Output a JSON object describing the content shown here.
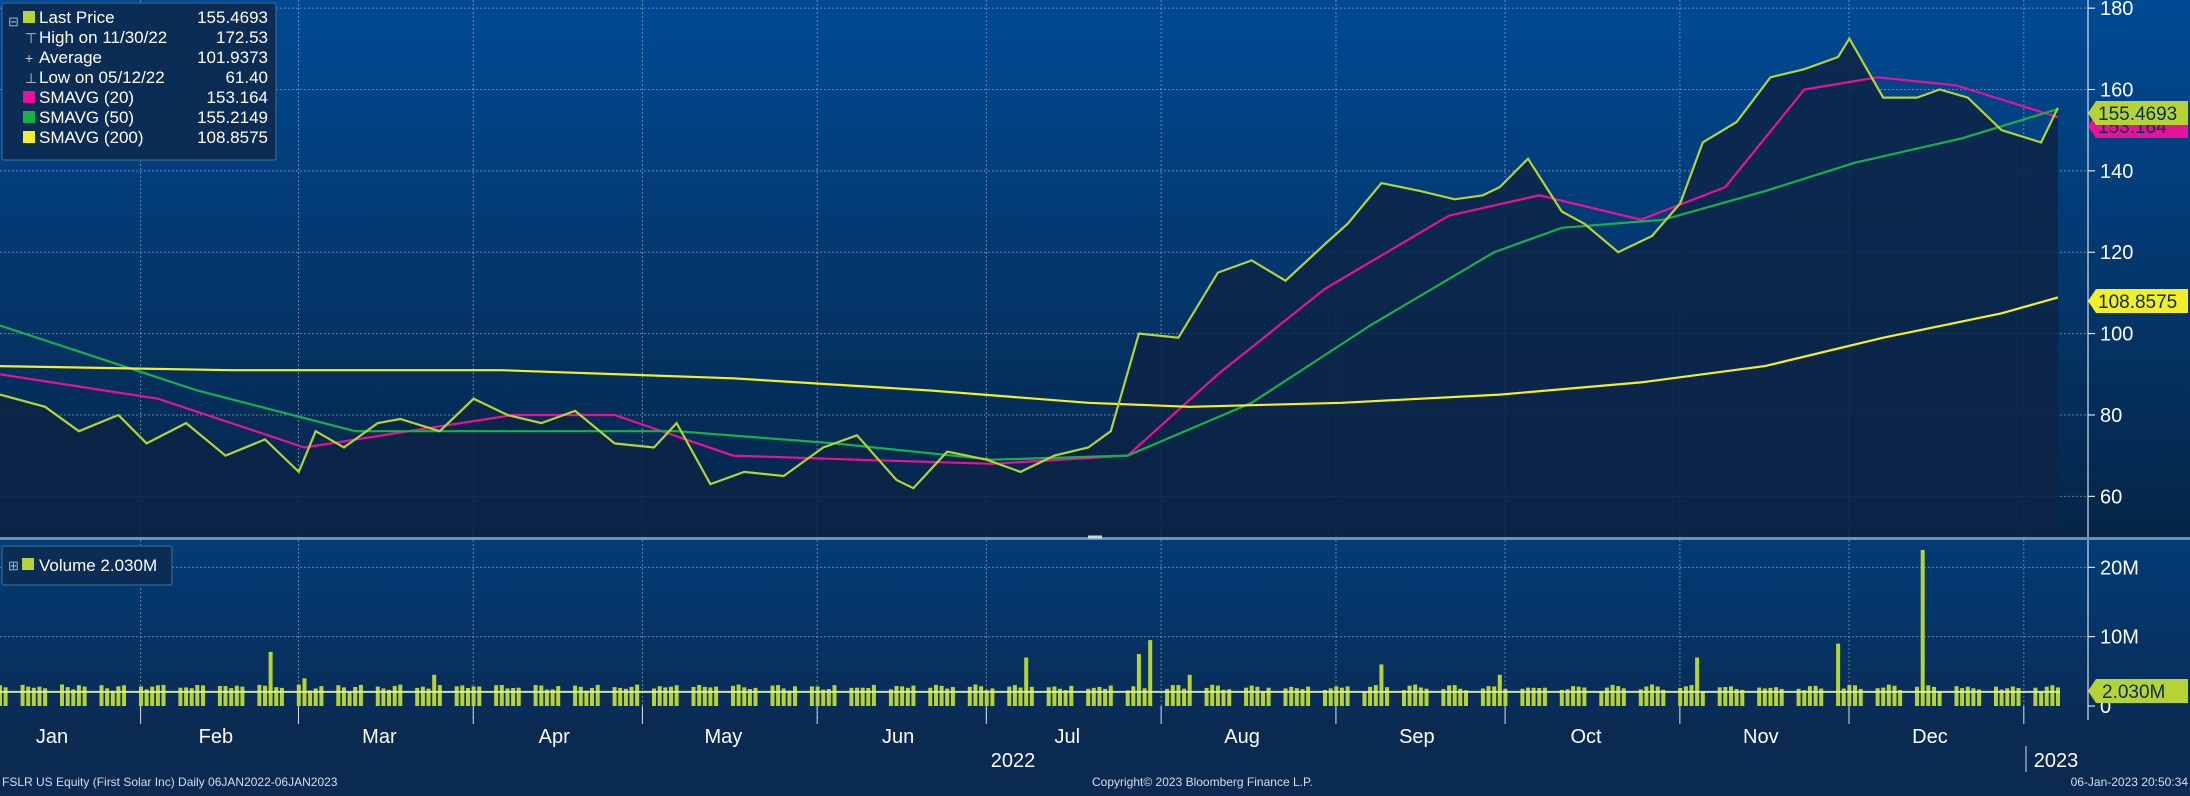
{
  "legend": [
    {
      "label": "Last Price",
      "value": "155.4693",
      "color": "#b5d334",
      "marker": "square"
    },
    {
      "label": "High on 11/30/22",
      "value": "172.53",
      "color": "#c8c8c8",
      "marker": "high-tick"
    },
    {
      "label": "Average",
      "value": "101.9373",
      "color": "#c8c8c8",
      "marker": "average-tick"
    },
    {
      "label": "Low on 05/12/22",
      "value": "61.40",
      "color": "#c8c8c8",
      "marker": "low-tick"
    },
    {
      "label": "SMAVG (20)",
      "value": "153.164",
      "color": "#e8129a",
      "marker": "square"
    },
    {
      "label": "SMAVG (50)",
      "value": "155.2149",
      "color": "#19b04a",
      "marker": "square"
    },
    {
      "label": "SMAVG (200)",
      "value": "108.8575",
      "color": "#f2ee2a",
      "marker": "square"
    }
  ],
  "volume_legend": {
    "label": "Volume 2.030M",
    "color": "#b5d334"
  },
  "price_tags": [
    {
      "value": "155.4693",
      "color": "#b5d334"
    },
    {
      "value": "153.164",
      "color": "#e8129a"
    },
    {
      "value": "108.8575",
      "color": "#f2ee2a"
    }
  ],
  "volume_tag": {
    "value": "2.030M",
    "color": "#b5d334"
  },
  "footer": {
    "left": "FSLR US Equity (First Solar Inc)  Daily 06JAN2022-06JAN2023",
    "center": "Copyright© 2023 Bloomberg Finance L.P.",
    "right": "06-Jan-2023 20:50:34"
  },
  "chart_data": {
    "type": "line",
    "title": "",
    "grid": true,
    "legend_position": "top-left",
    "x_month_labels": [
      "Jan",
      "Feb",
      "Mar",
      "Apr",
      "May",
      "Jun",
      "Jul",
      "Aug",
      "Sep",
      "Oct",
      "Nov",
      "Dec"
    ],
    "x_year_labels": [
      "2022",
      "2023"
    ],
    "price_ylim": [
      50,
      182
    ],
    "price_yticks": [
      60,
      80,
      100,
      120,
      140,
      160,
      180
    ],
    "volume_ylim": [
      0,
      25
    ],
    "volume_yticks": [
      {
        "v": 0,
        "label": "0"
      },
      {
        "v": 10,
        "label": "10M"
      },
      {
        "v": 20,
        "label": "20M"
      }
    ],
    "series": [
      {
        "name": "Last Price",
        "color": "#b5d334",
        "x": [
          "2022-01-06",
          "2022-01-14",
          "2022-01-20",
          "2022-01-27",
          "2022-02-01",
          "2022-02-08",
          "2022-02-15",
          "2022-02-22",
          "2022-02-28",
          "2022-03-03",
          "2022-03-08",
          "2022-03-14",
          "2022-03-18",
          "2022-03-25",
          "2022-03-31",
          "2022-04-06",
          "2022-04-12",
          "2022-04-18",
          "2022-04-25",
          "2022-05-02",
          "2022-05-06",
          "2022-05-12",
          "2022-05-18",
          "2022-05-25",
          "2022-06-01",
          "2022-06-07",
          "2022-06-14",
          "2022-06-17",
          "2022-06-23",
          "2022-06-30",
          "2022-07-06",
          "2022-07-12",
          "2022-07-18",
          "2022-07-22",
          "2022-07-27",
          "2022-08-03",
          "2022-08-10",
          "2022-08-16",
          "2022-08-22",
          "2022-08-29",
          "2022-09-02",
          "2022-09-08",
          "2022-09-15",
          "2022-09-21",
          "2022-09-26",
          "2022-09-29",
          "2022-10-04",
          "2022-10-10",
          "2022-10-14",
          "2022-10-20",
          "2022-10-26",
          "2022-10-31",
          "2022-11-04",
          "2022-11-10",
          "2022-11-16",
          "2022-11-22",
          "2022-11-28",
          "2022-11-30",
          "2022-12-06",
          "2022-12-12",
          "2022-12-16",
          "2022-12-21",
          "2022-12-27",
          "2023-01-03",
          "2023-01-06"
        ],
        "values": [
          85,
          82,
          76,
          80,
          73,
          78,
          70,
          74,
          66,
          76,
          72,
          78,
          79,
          76,
          84,
          80,
          78,
          81,
          73,
          72,
          78,
          63,
          66,
          65,
          72,
          75,
          64,
          62,
          71,
          69,
          66,
          70,
          72,
          76,
          100,
          99,
          115,
          118,
          113,
          122,
          127,
          137,
          135,
          133,
          134,
          136,
          143,
          130,
          127,
          120,
          124,
          132,
          147,
          152,
          163,
          165,
          168,
          172.5,
          158,
          158,
          160,
          158,
          150,
          147,
          155.5
        ]
      },
      {
        "name": "SMAVG (20)",
        "color": "#e8129a",
        "x": [
          "2022-01-06",
          "2022-02-03",
          "2022-03-01",
          "2022-03-24",
          "2022-04-07",
          "2022-04-25",
          "2022-05-16",
          "2022-06-07",
          "2022-07-01",
          "2022-07-25",
          "2022-08-10",
          "2022-08-29",
          "2022-09-20",
          "2022-10-06",
          "2022-10-24",
          "2022-11-08",
          "2022-11-22",
          "2022-12-05",
          "2022-12-19",
          "2023-01-06"
        ],
        "values": [
          90,
          84,
          72,
          77,
          80,
          80,
          70,
          69,
          68,
          70,
          90,
          111,
          129,
          134,
          128,
          136,
          160,
          163,
          161,
          153.2
        ]
      },
      {
        "name": "SMAVG (50)",
        "color": "#19b04a",
        "x": [
          "2022-01-06",
          "2022-02-10",
          "2022-03-10",
          "2022-04-08",
          "2022-05-06",
          "2022-06-03",
          "2022-07-01",
          "2022-07-25",
          "2022-08-16",
          "2022-09-06",
          "2022-09-28",
          "2022-10-10",
          "2022-10-28",
          "2022-11-15",
          "2022-12-01",
          "2022-12-20",
          "2023-01-06"
        ],
        "values": [
          102,
          86,
          76,
          76,
          76,
          73,
          69,
          70,
          83,
          102,
          120,
          126,
          128,
          135,
          142,
          148,
          155.2
        ]
      },
      {
        "name": "SMAVG (200)",
        "color": "#f2ee2a",
        "x": [
          "2022-01-06",
          "2022-02-16",
          "2022-04-05",
          "2022-05-16",
          "2022-06-20",
          "2022-07-18",
          "2022-08-05",
          "2022-09-01",
          "2022-09-29",
          "2022-10-24",
          "2022-11-15",
          "2022-12-06",
          "2022-12-27",
          "2023-01-06"
        ],
        "values": [
          92,
          91,
          91,
          89,
          86,
          83,
          82,
          83,
          85,
          88,
          92,
          99,
          105,
          108.9
        ]
      }
    ],
    "volume": {
      "name": "Volume",
      "color": "#b5d334",
      "last": "2.030M",
      "spikes": [
        {
          "x": "2022-01-20",
          "v": 3
        },
        {
          "x": "2022-02-02",
          "v": 2.8
        },
        {
          "x": "2022-02-23",
          "v": 7.8
        },
        {
          "x": "2022-03-01",
          "v": 4
        },
        {
          "x": "2022-03-24",
          "v": 4.5
        },
        {
          "x": "2022-07-07",
          "v": 7
        },
        {
          "x": "2022-07-27",
          "v": 7.5
        },
        {
          "x": "2022-07-29",
          "v": 9.5
        },
        {
          "x": "2022-08-05",
          "v": 4.5
        },
        {
          "x": "2022-09-08",
          "v": 6
        },
        {
          "x": "2022-09-29",
          "v": 4.5
        },
        {
          "x": "2022-11-03",
          "v": 7
        },
        {
          "x": "2022-11-28",
          "v": 9
        },
        {
          "x": "2022-12-13",
          "v": 22.5
        }
      ]
    }
  }
}
